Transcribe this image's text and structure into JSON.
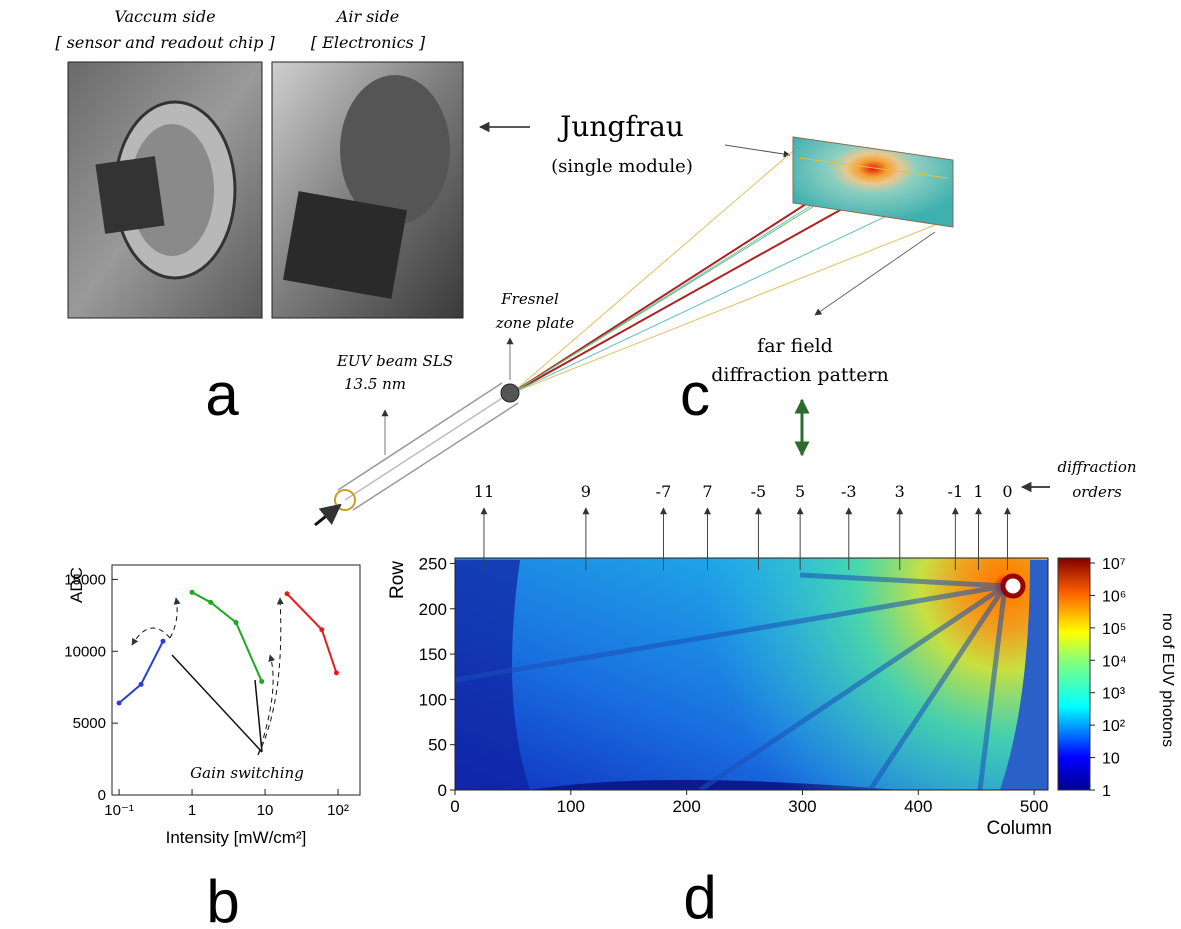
{
  "panel_a": {
    "letter": "a",
    "photos": [
      {
        "title": "Vaccum side",
        "subtitle": "[ sensor and readout chip ]"
      },
      {
        "title": "Air side",
        "subtitle": "[ Electronics ]"
      }
    ]
  },
  "panel_b": {
    "letter": "b"
  },
  "panel_c": {
    "letter": "c",
    "detector": "Jungfrau",
    "detector_note": "(single module)",
    "zone_plate": [
      "Fresnel",
      "zone plate"
    ],
    "beam": [
      "EUV beam SLS",
      "13.5 nm"
    ],
    "pattern": [
      "far field",
      "diffraction pattern"
    ]
  },
  "panel_d": {
    "letter": "d",
    "orders_label": [
      "diffraction",
      "orders"
    ],
    "orders": [
      {
        "label": "11",
        "column": 25
      },
      {
        "label": "9",
        "column": 113
      },
      {
        "label": "-7",
        "column": 180
      },
      {
        "label": "7",
        "column": 218
      },
      {
        "label": "-5",
        "column": 262
      },
      {
        "label": "5",
        "column": 298
      },
      {
        "label": "-3",
        "column": 340
      },
      {
        "label": "3",
        "column": 384
      },
      {
        "label": "-1",
        "column": 432
      },
      {
        "label": "1",
        "column": 452
      },
      {
        "label": "0",
        "column": 477
      }
    ]
  },
  "chart_data": [
    {
      "type": "line",
      "xlabel": "Intensity [mW/cm²]",
      "ylabel": "ADC",
      "annotation": "Gain switching",
      "xscale": "log",
      "xlim": [
        0.08,
        200
      ],
      "ylim": [
        0,
        16000
      ],
      "xticks": [
        {
          "value": 0.1,
          "label": "10⁻¹"
        },
        1,
        10,
        {
          "value": 100,
          "label": "10²"
        }
      ],
      "yticks": [
        0,
        5000,
        10000,
        15000
      ],
      "series": [
        {
          "color": "#2a3fd6",
          "x": [
            0.1,
            0.2,
            0.4
          ],
          "values": [
            6400,
            7700,
            10700
          ]
        },
        {
          "color": "#1fa81f",
          "x": [
            1,
            1.8,
            4,
            9
          ],
          "values": [
            14100,
            13400,
            12000,
            7900
          ]
        },
        {
          "color": "#e02020",
          "x": [
            20,
            60,
            95
          ],
          "values": [
            14000,
            11500,
            8500
          ]
        }
      ]
    },
    {
      "type": "heatmap",
      "xlabel": "Column",
      "ylabel": "Row",
      "xlim": [
        0,
        512
      ],
      "ylim": [
        0,
        256
      ],
      "xticks": [
        0,
        100,
        200,
        300,
        400,
        500
      ],
      "yticks": [
        0,
        50,
        100,
        150,
        200,
        250
      ],
      "colorbar": {
        "label": "no of EUV photons",
        "scale": "log",
        "lim": [
          1,
          10000000
        ],
        "ticks": [
          1,
          10,
          {
            "value": 100,
            "label": "10²"
          },
          {
            "value": 1000,
            "label": "10³"
          },
          {
            "value": 10000,
            "label": "10⁴"
          },
          {
            "value": 100000,
            "label": "10⁵"
          },
          {
            "value": 1000000,
            "label": "10⁶"
          },
          {
            "value": 10000000,
            "label": "10⁷"
          }
        ]
      }
    }
  ]
}
